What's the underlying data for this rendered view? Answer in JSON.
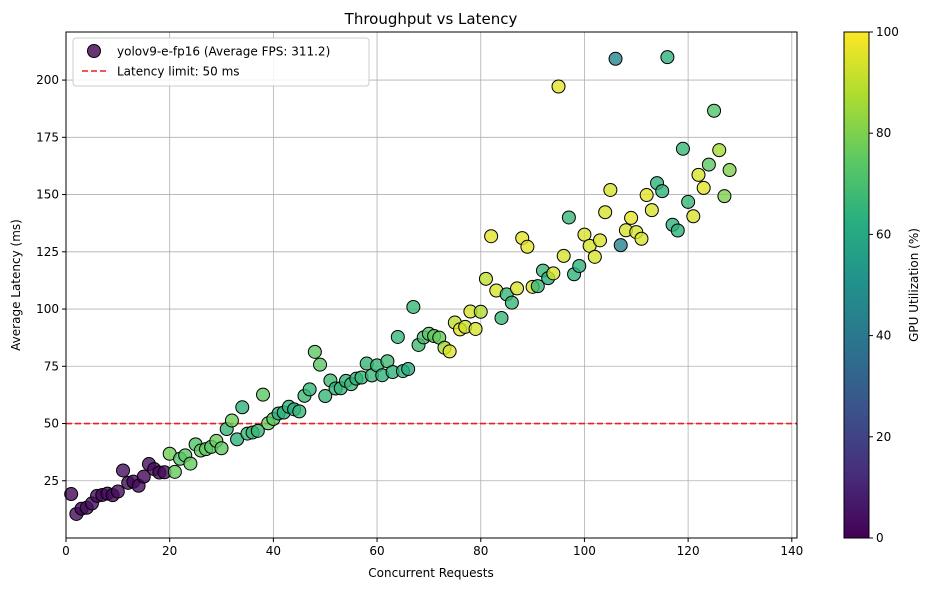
{
  "chart_data": {
    "type": "scatter",
    "title": "Throughput vs Latency",
    "xlabel": "Concurrent Requests",
    "ylabel": "Average Latency (ms)",
    "xlim": [
      0,
      141
    ],
    "ylim": [
      0,
      221
    ],
    "xticks": [
      "0",
      "20",
      "40",
      "60",
      "80",
      "100",
      "120",
      "140"
    ],
    "xtick_values": [
      0,
      20,
      40,
      60,
      80,
      100,
      120,
      140
    ],
    "yticks": [
      "25",
      "50",
      "75",
      "100",
      "125",
      "150",
      "175",
      "200"
    ],
    "ytick_values": [
      25,
      50,
      75,
      100,
      125,
      150,
      175,
      200
    ],
    "grid": true,
    "legend_position": "top-left",
    "colormap": "viridis",
    "colorbar": {
      "label": "GPU Utilization (%)",
      "range": [
        0,
        100
      ],
      "ticks": [
        "0",
        "20",
        "40",
        "60",
        "80",
        "100"
      ],
      "tick_values": [
        0,
        20,
        40,
        60,
        80,
        100
      ]
    },
    "reference_line": {
      "y": 50,
      "color": "#e8211c",
      "style": "dashed",
      "label": "Latency limit: 50 ms"
    },
    "series": [
      {
        "name": "yolov9-e-fp16 (Average FPS: 311.2)",
        "points": [
          {
            "x": 1,
            "y": 19.2,
            "gpu": 2
          },
          {
            "x": 2,
            "y": 10.5,
            "gpu": 3
          },
          {
            "x": 3,
            "y": 12.8,
            "gpu": 2
          },
          {
            "x": 4,
            "y": 13.2,
            "gpu": 3
          },
          {
            "x": 5,
            "y": 15.1,
            "gpu": 4
          },
          {
            "x": 6,
            "y": 18.4,
            "gpu": 3
          },
          {
            "x": 7,
            "y": 18.8,
            "gpu": 2
          },
          {
            "x": 8,
            "y": 19.4,
            "gpu": 3
          },
          {
            "x": 9,
            "y": 18.7,
            "gpu": 2
          },
          {
            "x": 10,
            "y": 20.3,
            "gpu": 3
          },
          {
            "x": 11,
            "y": 29.5,
            "gpu": 4
          },
          {
            "x": 12,
            "y": 24.1,
            "gpu": 3
          },
          {
            "x": 13,
            "y": 24.6,
            "gpu": 2
          },
          {
            "x": 14,
            "y": 22.8,
            "gpu": 3
          },
          {
            "x": 15,
            "y": 26.8,
            "gpu": 2
          },
          {
            "x": 16,
            "y": 32.3,
            "gpu": 4
          },
          {
            "x": 17,
            "y": 30.1,
            "gpu": 3
          },
          {
            "x": 18,
            "y": 28.6,
            "gpu": 2
          },
          {
            "x": 19,
            "y": 28.7,
            "gpu": 3
          },
          {
            "x": 20,
            "y": 36.8,
            "gpu": 78
          },
          {
            "x": 21,
            "y": 28.9,
            "gpu": 76
          },
          {
            "x": 22,
            "y": 34.6,
            "gpu": 72
          },
          {
            "x": 23,
            "y": 36.1,
            "gpu": 74
          },
          {
            "x": 24,
            "y": 32.5,
            "gpu": 76
          },
          {
            "x": 25,
            "y": 40.9,
            "gpu": 72
          },
          {
            "x": 26,
            "y": 38.2,
            "gpu": 75
          },
          {
            "x": 27,
            "y": 38.8,
            "gpu": 76
          },
          {
            "x": 28,
            "y": 39.8,
            "gpu": 74
          },
          {
            "x": 29,
            "y": 42.4,
            "gpu": 77
          },
          {
            "x": 30,
            "y": 39.2,
            "gpu": 75
          },
          {
            "x": 31,
            "y": 47.6,
            "gpu": 66
          },
          {
            "x": 32,
            "y": 51.3,
            "gpu": 78
          },
          {
            "x": 33,
            "y": 43.1,
            "gpu": 64
          },
          {
            "x": 34,
            "y": 57.1,
            "gpu": 64
          },
          {
            "x": 35,
            "y": 45.6,
            "gpu": 66
          },
          {
            "x": 36,
            "y": 46.1,
            "gpu": 67
          },
          {
            "x": 37,
            "y": 46.8,
            "gpu": 66
          },
          {
            "x": 38,
            "y": 62.6,
            "gpu": 74
          },
          {
            "x": 39,
            "y": 50.1,
            "gpu": 76
          },
          {
            "x": 40,
            "y": 52.0,
            "gpu": 74
          },
          {
            "x": 41,
            "y": 54.4,
            "gpu": 62
          },
          {
            "x": 42,
            "y": 54.8,
            "gpu": 64
          },
          {
            "x": 43,
            "y": 57.3,
            "gpu": 64
          },
          {
            "x": 44,
            "y": 56.2,
            "gpu": 62
          },
          {
            "x": 45,
            "y": 55.3,
            "gpu": 66
          },
          {
            "x": 46,
            "y": 62.1,
            "gpu": 68
          },
          {
            "x": 47,
            "y": 64.9,
            "gpu": 66
          },
          {
            "x": 48,
            "y": 81.3,
            "gpu": 75
          },
          {
            "x": 49,
            "y": 75.7,
            "gpu": 74
          },
          {
            "x": 50,
            "y": 62.0,
            "gpu": 66
          },
          {
            "x": 51,
            "y": 68.8,
            "gpu": 68
          },
          {
            "x": 52,
            "y": 65.3,
            "gpu": 64
          },
          {
            "x": 53,
            "y": 65.4,
            "gpu": 66
          },
          {
            "x": 54,
            "y": 68.6,
            "gpu": 64
          },
          {
            "x": 55,
            "y": 67.2,
            "gpu": 66
          },
          {
            "x": 56,
            "y": 69.6,
            "gpu": 64
          },
          {
            "x": 57,
            "y": 70.1,
            "gpu": 66
          },
          {
            "x": 58,
            "y": 76.2,
            "gpu": 66
          },
          {
            "x": 59,
            "y": 71.0,
            "gpu": 66
          },
          {
            "x": 60,
            "y": 75.4,
            "gpu": 66
          },
          {
            "x": 61,
            "y": 71.1,
            "gpu": 64
          },
          {
            "x": 62,
            "y": 77.2,
            "gpu": 68
          },
          {
            "x": 63,
            "y": 72.5,
            "gpu": 64
          },
          {
            "x": 64,
            "y": 87.8,
            "gpu": 66
          },
          {
            "x": 65,
            "y": 72.9,
            "gpu": 64
          },
          {
            "x": 66,
            "y": 73.8,
            "gpu": 62
          },
          {
            "x": 67,
            "y": 100.9,
            "gpu": 66
          },
          {
            "x": 68,
            "y": 84.3,
            "gpu": 68
          },
          {
            "x": 69,
            "y": 87.6,
            "gpu": 70
          },
          {
            "x": 70,
            "y": 89.2,
            "gpu": 74
          },
          {
            "x": 71,
            "y": 88.2,
            "gpu": 75
          },
          {
            "x": 72,
            "y": 87.5,
            "gpu": 76
          },
          {
            "x": 73,
            "y": 83.1,
            "gpu": 86
          },
          {
            "x": 74,
            "y": 81.5,
            "gpu": 95
          },
          {
            "x": 75,
            "y": 94.1,
            "gpu": 90
          },
          {
            "x": 76,
            "y": 91.1,
            "gpu": 96
          },
          {
            "x": 77,
            "y": 92.2,
            "gpu": 92
          },
          {
            "x": 78,
            "y": 98.9,
            "gpu": 94
          },
          {
            "x": 79,
            "y": 91.3,
            "gpu": 94
          },
          {
            "x": 80,
            "y": 98.8,
            "gpu": 88
          },
          {
            "x": 81,
            "y": 113.2,
            "gpu": 90
          },
          {
            "x": 82,
            "y": 131.8,
            "gpu": 96
          },
          {
            "x": 83,
            "y": 108.1,
            "gpu": 94
          },
          {
            "x": 84,
            "y": 96.1,
            "gpu": 66
          },
          {
            "x": 85,
            "y": 106.4,
            "gpu": 66
          },
          {
            "x": 86,
            "y": 102.8,
            "gpu": 66
          },
          {
            "x": 87,
            "y": 109.0,
            "gpu": 94
          },
          {
            "x": 88,
            "y": 131.0,
            "gpu": 96
          },
          {
            "x": 89,
            "y": 127.2,
            "gpu": 96
          },
          {
            "x": 90,
            "y": 109.7,
            "gpu": 94
          },
          {
            "x": 91,
            "y": 110.0,
            "gpu": 66
          },
          {
            "x": 92,
            "y": 116.8,
            "gpu": 66
          },
          {
            "x": 93,
            "y": 113.5,
            "gpu": 62
          },
          {
            "x": 94,
            "y": 115.6,
            "gpu": 94
          },
          {
            "x": 95,
            "y": 197.2,
            "gpu": 96
          },
          {
            "x": 96,
            "y": 123.2,
            "gpu": 94
          },
          {
            "x": 97,
            "y": 140.0,
            "gpu": 66
          },
          {
            "x": 98,
            "y": 115.2,
            "gpu": 64
          },
          {
            "x": 99,
            "y": 118.8,
            "gpu": 64
          },
          {
            "x": 100,
            "y": 132.5,
            "gpu": 94
          },
          {
            "x": 101,
            "y": 127.6,
            "gpu": 94
          },
          {
            "x": 102,
            "y": 122.8,
            "gpu": 94
          },
          {
            "x": 103,
            "y": 130.0,
            "gpu": 94
          },
          {
            "x": 104,
            "y": 142.3,
            "gpu": 94
          },
          {
            "x": 105,
            "y": 152.0,
            "gpu": 94
          },
          {
            "x": 106,
            "y": 209.3,
            "gpu": 46
          },
          {
            "x": 107,
            "y": 127.9,
            "gpu": 44
          },
          {
            "x": 108,
            "y": 134.4,
            "gpu": 94
          },
          {
            "x": 109,
            "y": 139.8,
            "gpu": 96
          },
          {
            "x": 110,
            "y": 133.6,
            "gpu": 94
          },
          {
            "x": 111,
            "y": 130.7,
            "gpu": 94
          },
          {
            "x": 112,
            "y": 149.8,
            "gpu": 96
          },
          {
            "x": 113,
            "y": 143.2,
            "gpu": 94
          },
          {
            "x": 114,
            "y": 155.0,
            "gpu": 64
          },
          {
            "x": 115,
            "y": 151.5,
            "gpu": 64
          },
          {
            "x": 116,
            "y": 210.0,
            "gpu": 64
          },
          {
            "x": 117,
            "y": 136.8,
            "gpu": 64
          },
          {
            "x": 118,
            "y": 134.3,
            "gpu": 64
          },
          {
            "x": 119,
            "y": 170.0,
            "gpu": 66
          },
          {
            "x": 120,
            "y": 146.8,
            "gpu": 66
          },
          {
            "x": 121,
            "y": 140.5,
            "gpu": 94
          },
          {
            "x": 122,
            "y": 158.6,
            "gpu": 94
          },
          {
            "x": 123,
            "y": 152.9,
            "gpu": 96
          },
          {
            "x": 124,
            "y": 163.1,
            "gpu": 74
          },
          {
            "x": 125,
            "y": 186.6,
            "gpu": 72
          },
          {
            "x": 126,
            "y": 169.4,
            "gpu": 86
          },
          {
            "x": 127,
            "y": 149.3,
            "gpu": 80
          },
          {
            "x": 128,
            "y": 160.7,
            "gpu": 80
          }
        ]
      }
    ]
  }
}
